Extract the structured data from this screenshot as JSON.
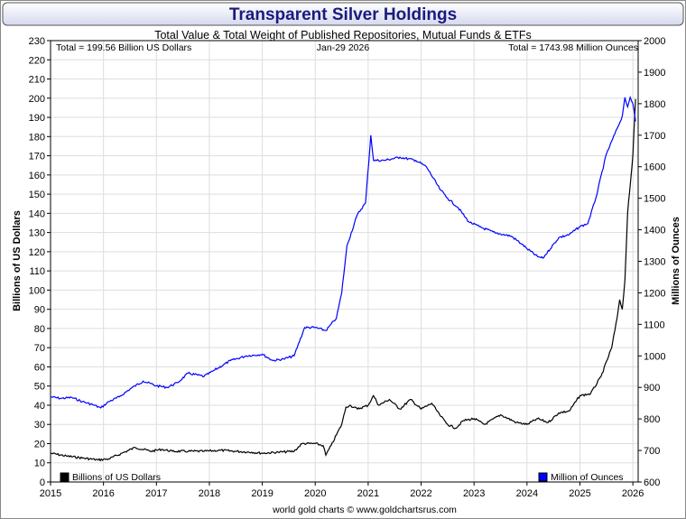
{
  "colors": {
    "title_bar_gradient_top": "#ffffff",
    "title_bar_gradient_bottom": "#d6d9ee",
    "title": "#1a1a80",
    "usd_series": "#000000",
    "ounces_series": "#0000ff",
    "grid": "#dddddd"
  },
  "chart_data": {
    "type": "line",
    "title": "Transparent Silver Holdings",
    "subtitle": "Total Value & Total Weight of Published Repositories, Mutual Funds & ETFs",
    "stat_left": "Total = 199.56 Billion US Dollars",
    "stat_date": "Jan-29  2026",
    "stat_right": "Total = 1743.98 Million Ounces",
    "ylabel_left": "Billions of US Dollars",
    "ylabel_right": "Millions of Ounces",
    "footer": "world gold charts © www.goldchartsrus.com",
    "xlim": [
      2015,
      2026.1
    ],
    "ylim_left": [
      0,
      230
    ],
    "ylim_right": [
      600,
      2000
    ],
    "x_ticks": [
      "2015",
      "2016",
      "2017",
      "2018",
      "2019",
      "2020",
      "2021",
      "2022",
      "2023",
      "2024",
      "2025",
      "2026"
    ],
    "y_left_ticks": [
      "0",
      "10",
      "20",
      "30",
      "40",
      "50",
      "60",
      "70",
      "80",
      "90",
      "100",
      "110",
      "120",
      "130",
      "140",
      "150",
      "160",
      "170",
      "180",
      "190",
      "200",
      "210",
      "220",
      "230"
    ],
    "y_right_ticks": [
      "600",
      "700",
      "800",
      "900",
      "1000",
      "1100",
      "1200",
      "1300",
      "1400",
      "1500",
      "1600",
      "1700",
      "1800",
      "1900",
      "2000"
    ],
    "grid": true,
    "legend_position": "bottom",
    "series": [
      {
        "name": "Billions of US Dollars",
        "axis": "left",
        "x": [
          2015.0,
          2015.3,
          2015.6,
          2015.9,
          2016.1,
          2016.35,
          2016.6,
          2016.9,
          2017.1,
          2017.3,
          2017.6,
          2017.9,
          2018.2,
          2018.5,
          2018.8,
          2019.0,
          2019.3,
          2019.6,
          2019.75,
          2020.0,
          2020.15,
          2020.2,
          2020.3,
          2020.5,
          2020.58,
          2020.65,
          2020.8,
          2021.0,
          2021.1,
          2021.2,
          2021.4,
          2021.6,
          2021.8,
          2022.0,
          2022.2,
          2022.35,
          2022.5,
          2022.65,
          2022.8,
          2023.0,
          2023.2,
          2023.5,
          2023.8,
          2024.0,
          2024.2,
          2024.4,
          2024.6,
          2024.8,
          2025.0,
          2025.2,
          2025.4,
          2025.6,
          2025.7,
          2025.75,
          2025.8,
          2025.85,
          2025.9,
          2026.0,
          2026.05
        ],
        "values": [
          15,
          13.5,
          12.5,
          11.5,
          12,
          15,
          18,
          16,
          17,
          16,
          16,
          16,
          16.5,
          16,
          15.5,
          15,
          15.5,
          16,
          20,
          20,
          19,
          14,
          19,
          30,
          39,
          40,
          38,
          40,
          45,
          40,
          43,
          38,
          43,
          38,
          41,
          35,
          30,
          28,
          32,
          33,
          30,
          35,
          31,
          30,
          33,
          31,
          36,
          37,
          45,
          46,
          55,
          70,
          85,
          95,
          90,
          105,
          140,
          170,
          199.56
        ]
      },
      {
        "name": "Million of Ounces",
        "axis": "right",
        "x": [
          2015.0,
          2015.2,
          2015.4,
          2015.6,
          2015.8,
          2015.95,
          2016.1,
          2016.3,
          2016.5,
          2016.75,
          2017.0,
          2017.2,
          2017.4,
          2017.6,
          2017.9,
          2018.1,
          2018.4,
          2018.7,
          2019.0,
          2019.2,
          2019.4,
          2019.6,
          2019.8,
          2020.0,
          2020.2,
          2020.4,
          2020.5,
          2020.6,
          2020.8,
          2020.95,
          2021.05,
          2021.1,
          2021.3,
          2021.6,
          2021.9,
          2022.1,
          2022.35,
          2022.5,
          2022.7,
          2022.9,
          2023.1,
          2023.4,
          2023.7,
          2023.9,
          2024.0,
          2024.2,
          2024.3,
          2024.6,
          2024.8,
          2025.0,
          2025.15,
          2025.3,
          2025.5,
          2025.7,
          2025.8,
          2025.85,
          2025.9,
          2025.95,
          2026.0,
          2026.05
        ],
        "values": [
          870,
          865,
          868,
          855,
          845,
          835,
          855,
          870,
          895,
          920,
          905,
          900,
          915,
          945,
          935,
          955,
          985,
          1000,
          1005,
          985,
          990,
          1000,
          1090,
          1090,
          1080,
          1120,
          1200,
          1350,
          1450,
          1485,
          1700,
          1620,
          1620,
          1630,
          1620,
          1600,
          1530,
          1500,
          1470,
          1425,
          1410,
          1390,
          1380,
          1355,
          1340,
          1315,
          1310,
          1375,
          1385,
          1410,
          1420,
          1500,
          1640,
          1720,
          1760,
          1820,
          1790,
          1820,
          1800,
          1743.98
        ]
      }
    ]
  }
}
